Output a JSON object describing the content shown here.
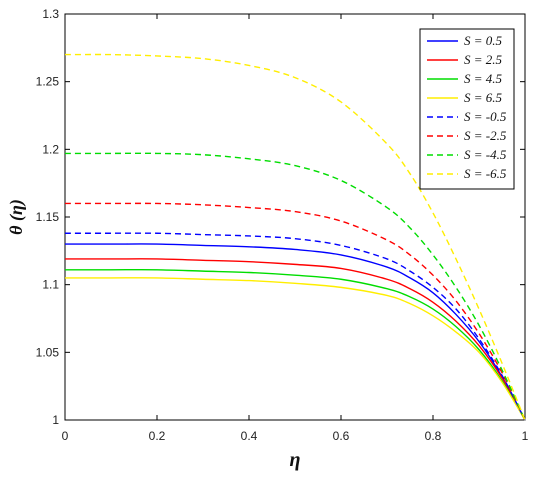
{
  "chart_data": {
    "type": "line",
    "xlabel": "η",
    "ylabel": "θ (η)",
    "xlim": [
      0,
      1
    ],
    "ylim": [
      1,
      1.3
    ],
    "x_ticks": [
      "0",
      "0.2",
      "0.4",
      "0.6",
      "0.8",
      "1"
    ],
    "y_ticks": [
      "1",
      "1.05",
      "1.1",
      "1.15",
      "1.2",
      "1.25",
      "1.3"
    ],
    "grid": false,
    "legend_position": "top-right",
    "x": [
      0,
      0.1,
      0.2,
      0.3,
      0.4,
      0.5,
      0.6,
      0.7,
      0.75,
      0.8,
      0.85,
      0.9,
      0.95,
      1.0
    ],
    "series": [
      {
        "name": "S = 0.5",
        "color": "#0000ff",
        "dash": "solid",
        "values": [
          1.13,
          1.13,
          1.13,
          1.129,
          1.128,
          1.126,
          1.122,
          1.113,
          1.105,
          1.094,
          1.078,
          1.058,
          1.032,
          1.0
        ]
      },
      {
        "name": "S = 2.5",
        "color": "#ff0000",
        "dash": "solid",
        "values": [
          1.119,
          1.119,
          1.119,
          1.118,
          1.117,
          1.115,
          1.112,
          1.104,
          1.097,
          1.087,
          1.073,
          1.055,
          1.031,
          1.0
        ]
      },
      {
        "name": "S = 4.5",
        "color": "#00dd00",
        "dash": "solid",
        "values": [
          1.111,
          1.111,
          1.111,
          1.11,
          1.109,
          1.107,
          1.104,
          1.097,
          1.091,
          1.082,
          1.069,
          1.052,
          1.029,
          1.0
        ]
      },
      {
        "name": "S = 6.5",
        "color": "#ffee00",
        "dash": "solid",
        "values": [
          1.105,
          1.105,
          1.105,
          1.104,
          1.103,
          1.101,
          1.098,
          1.092,
          1.086,
          1.077,
          1.065,
          1.05,
          1.028,
          1.0
        ]
      },
      {
        "name": "S = -0.5",
        "color": "#0000ff",
        "dash": "dashed",
        "values": [
          1.138,
          1.138,
          1.138,
          1.137,
          1.136,
          1.134,
          1.129,
          1.119,
          1.11,
          1.098,
          1.082,
          1.06,
          1.033,
          1.0
        ]
      },
      {
        "name": "S = -2.5",
        "color": "#ff0000",
        "dash": "dashed",
        "values": [
          1.16,
          1.16,
          1.16,
          1.159,
          1.157,
          1.154,
          1.147,
          1.133,
          1.122,
          1.107,
          1.088,
          1.064,
          1.035,
          1.0
        ]
      },
      {
        "name": "S = -4.5",
        "color": "#00dd00",
        "dash": "dashed",
        "values": [
          1.197,
          1.197,
          1.197,
          1.196,
          1.193,
          1.188,
          1.177,
          1.157,
          1.142,
          1.122,
          1.098,
          1.07,
          1.037,
          1.0
        ]
      },
      {
        "name": "S = -6.5",
        "color": "#ffee00",
        "dash": "dashed",
        "values": [
          1.27,
          1.27,
          1.269,
          1.267,
          1.262,
          1.253,
          1.235,
          1.204,
          1.182,
          1.153,
          1.119,
          1.082,
          1.042,
          1.0
        ]
      }
    ]
  }
}
